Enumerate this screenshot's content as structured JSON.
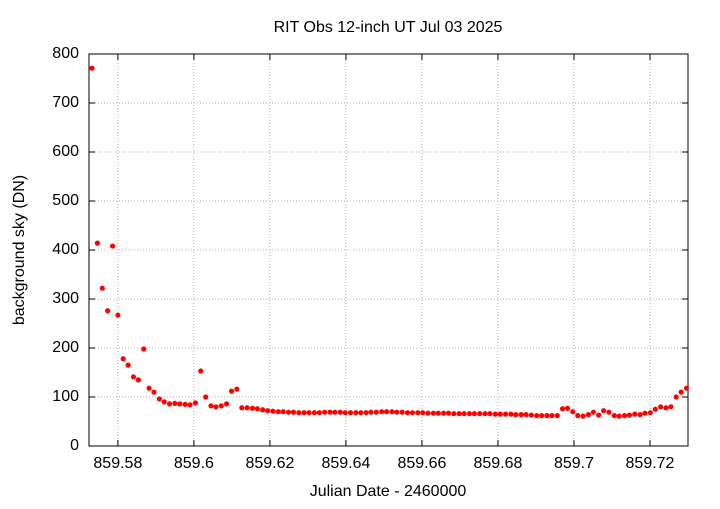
{
  "chart_data": {
    "type": "scatter",
    "title": "RIT Obs 12-inch UT Jul 03 2025",
    "xlabel": "Julian Date - 2460000",
    "ylabel": "background sky (DN)",
    "xlim": [
      859.5724,
      859.73
    ],
    "ylim": [
      0,
      800
    ],
    "xticks": [
      859.58,
      859.6,
      859.62,
      859.64,
      859.66,
      859.68,
      859.7,
      859.72
    ],
    "yticks": [
      0,
      100,
      200,
      300,
      400,
      500,
      600,
      700,
      800
    ],
    "grid": true,
    "series": [
      {
        "color": "#ff0000",
        "x": [
          859.5732,
          859.5746,
          859.5759,
          859.5773,
          859.5786,
          859.58,
          859.5814,
          859.5827,
          859.5841,
          859.5854,
          859.5868,
          859.5882,
          859.5895,
          859.5909,
          859.5922,
          859.5936,
          859.595,
          859.5963,
          859.5977,
          859.599,
          859.6004,
          859.6018,
          859.6031,
          859.6045,
          859.6058,
          859.6072,
          859.6086,
          859.6099,
          859.6113,
          859.6126,
          859.614,
          859.6154,
          859.6167,
          859.6181,
          859.6194,
          859.6208,
          859.6222,
          859.6235,
          859.6249,
          859.6262,
          859.6276,
          859.629,
          859.6303,
          859.6317,
          859.633,
          859.6344,
          859.6358,
          859.6371,
          859.6385,
          859.6398,
          859.6412,
          859.6426,
          859.6439,
          859.6453,
          859.6466,
          859.648,
          859.6494,
          859.6507,
          859.6521,
          859.6534,
          859.6548,
          859.6562,
          859.6575,
          859.6589,
          859.6602,
          859.6616,
          859.663,
          859.6643,
          859.6657,
          859.667,
          859.6684,
          859.6698,
          859.6711,
          859.6725,
          859.6738,
          859.6752,
          859.6766,
          859.6779,
          859.6793,
          859.6806,
          859.682,
          859.6834,
          859.6847,
          859.6861,
          859.6874,
          859.6888,
          859.6902,
          859.6915,
          859.6929,
          859.6942,
          859.6956,
          859.697,
          859.6983,
          859.6997,
          859.701,
          859.7024,
          859.7038,
          859.7051,
          859.7065,
          859.7078,
          859.7092,
          859.7106,
          859.7119,
          859.7133,
          859.7146,
          859.716,
          859.7174,
          859.7187,
          859.7201,
          859.7214,
          859.7228,
          859.7242,
          859.7255,
          859.7269,
          859.7282,
          859.7296
        ],
        "values": [
          771,
          414,
          322,
          276,
          408,
          267,
          178,
          165,
          141,
          135,
          198,
          118,
          110,
          96,
          90,
          86,
          87,
          86,
          85,
          84,
          88,
          153,
          100,
          82,
          80,
          82,
          86,
          112,
          116,
          78,
          78,
          77,
          76,
          74,
          72,
          71,
          70,
          70,
          69,
          69,
          68,
          68,
          68,
          68,
          68,
          69,
          69,
          69,
          69,
          68,
          68,
          68,
          68,
          68,
          69,
          69,
          70,
          70,
          70,
          69,
          69,
          68,
          68,
          68,
          68,
          67,
          67,
          67,
          67,
          67,
          66,
          66,
          66,
          66,
          66,
          66,
          66,
          66,
          65,
          65,
          65,
          65,
          64,
          64,
          64,
          63,
          62,
          62,
          62,
          62,
          62,
          76,
          77,
          70,
          62,
          61,
          64,
          69,
          63,
          72,
          69,
          62,
          61,
          62,
          63,
          65,
          64,
          67,
          68,
          75,
          80,
          78,
          80,
          100,
          110,
          118
        ]
      }
    ]
  }
}
